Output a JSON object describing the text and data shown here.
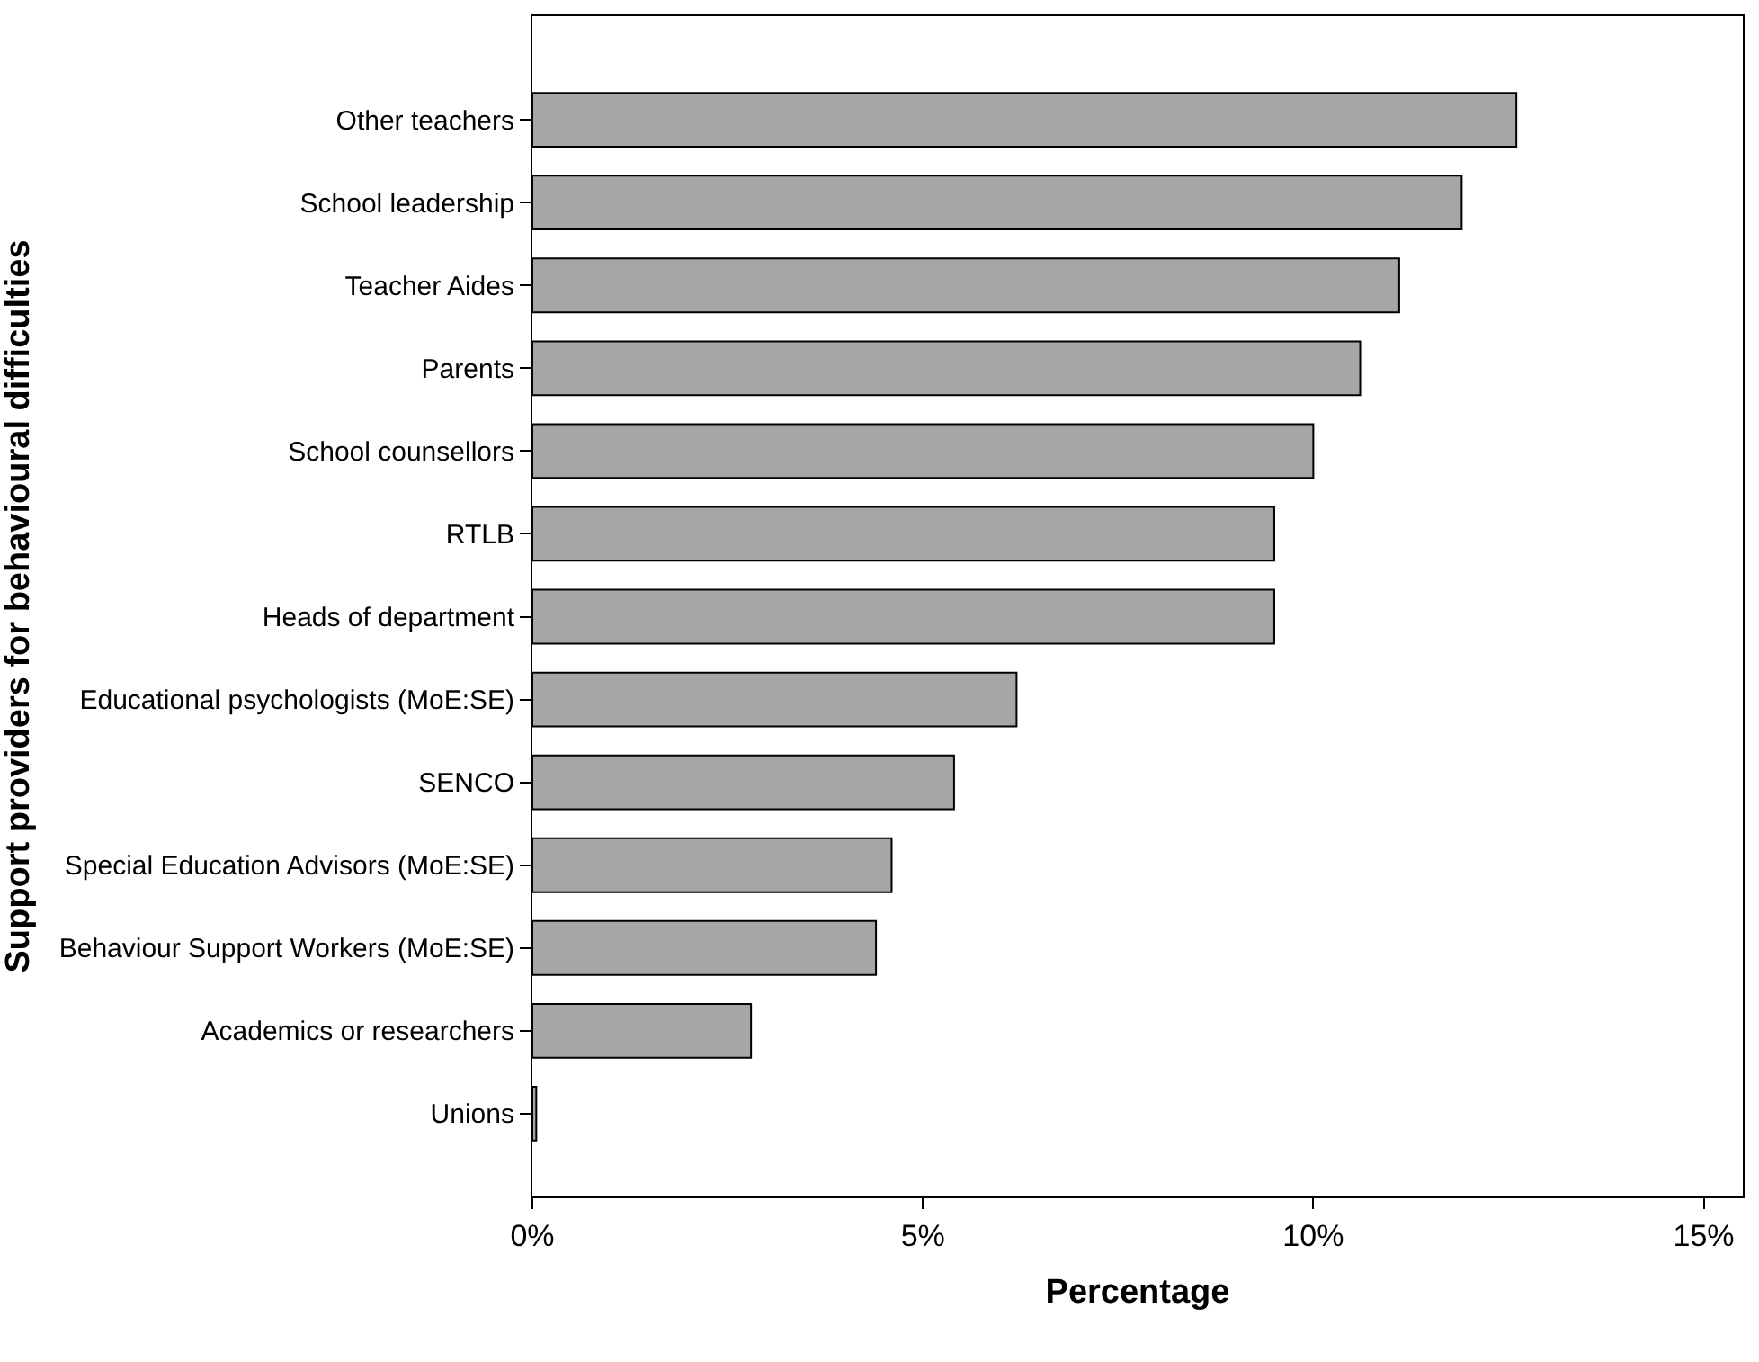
{
  "chart_data": {
    "type": "bar",
    "orientation": "horizontal",
    "xlabel": "Percentage",
    "ylabel": "Support providers for behavioural difficulties",
    "categories": [
      "Other teachers",
      "School leadership",
      "Teacher Aides",
      "Parents",
      "School counsellors",
      "RTLB",
      "Heads of department",
      "Educational psychologists (MoE:SE)",
      "SENCO",
      "Special Education Advisors (MoE:SE)",
      "Behaviour Support Workers (MoE:SE)",
      "Academics or researchers",
      "Unions"
    ],
    "values": [
      12.6,
      11.9,
      11.1,
      10.6,
      10.0,
      9.5,
      9.5,
      6.2,
      5.4,
      4.6,
      4.4,
      2.8,
      0.05
    ],
    "color": "#a6a6a6",
    "xlim": [
      0,
      15.5
    ],
    "xticks": [
      {
        "value": 0,
        "label": "0%"
      },
      {
        "value": 5,
        "label": "5%"
      },
      {
        "value": 10,
        "label": "10%"
      },
      {
        "value": 15,
        "label": "15%"
      }
    ]
  }
}
